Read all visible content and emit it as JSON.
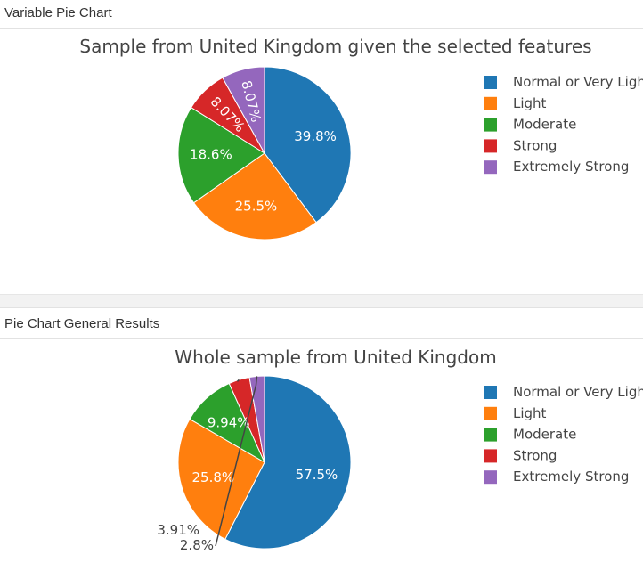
{
  "panels": [
    {
      "header": "Variable Pie Chart"
    },
    {
      "header": "Pie Chart General Results"
    }
  ],
  "chart_data": [
    {
      "type": "pie",
      "title": "Sample from United Kingdom given the selected features",
      "categories": [
        "Normal or Very Light",
        "Light",
        "Moderate",
        "Strong",
        "Extremely Strong"
      ],
      "values": [
        39.8,
        25.5,
        18.6,
        8.07,
        8.07
      ],
      "labels": [
        "39.8%",
        "25.5%",
        "18.6%",
        "8.07%",
        "8.07%"
      ],
      "colors": [
        "#1f77b4",
        "#ff7f0e",
        "#2ca02c",
        "#d62728",
        "#9467bd"
      ],
      "legend": "right",
      "legend_entries": [
        "Normal or Very Light",
        "Light",
        "Moderate",
        "Strong",
        "Extremely Strong"
      ]
    },
    {
      "type": "pie",
      "title": "Whole sample from United Kingdom",
      "categories": [
        "Normal or Very Light",
        "Light",
        "Moderate",
        "Strong",
        "Extremely Strong"
      ],
      "values": [
        57.5,
        25.8,
        9.94,
        3.91,
        2.8
      ],
      "labels": [
        "57.5%",
        "25.8%",
        "9.94%",
        "3.91%",
        "2.8%"
      ],
      "colors": [
        "#1f77b4",
        "#ff7f0e",
        "#2ca02c",
        "#d62728",
        "#9467bd"
      ],
      "legend": "right",
      "legend_entries": [
        "Normal or Very Light",
        "Light",
        "Moderate",
        "Strong",
        "Extremely Strong"
      ]
    }
  ]
}
